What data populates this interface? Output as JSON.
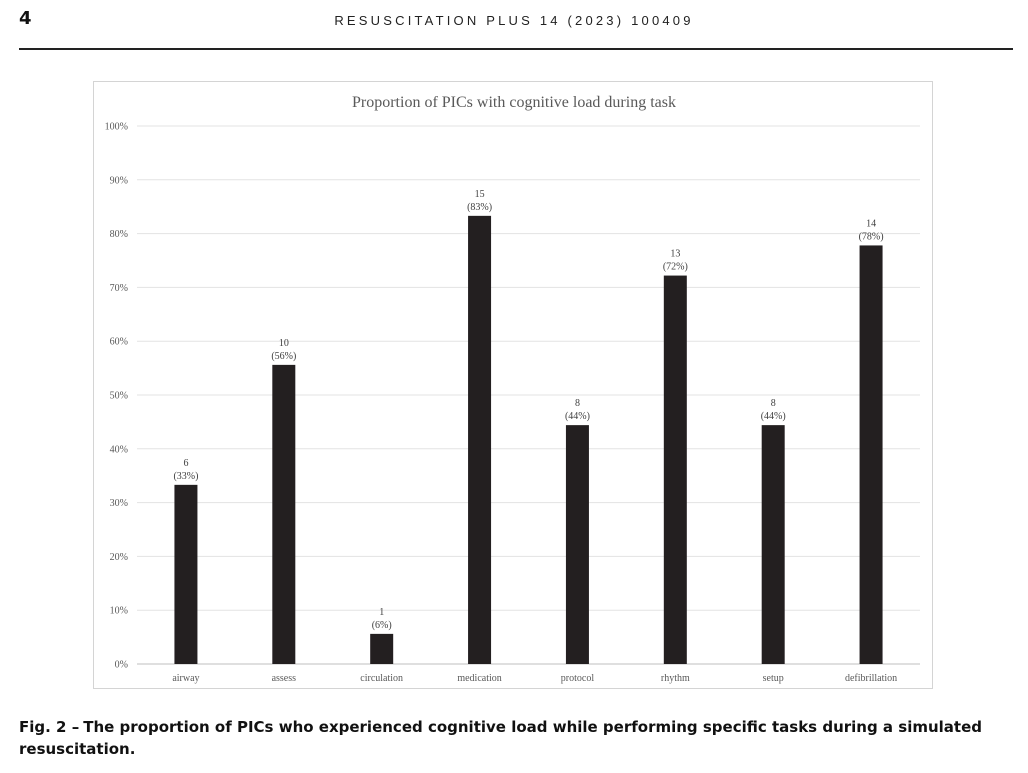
{
  "header": {
    "page_number": "4",
    "journal": "RESUSCITATION PLUS 14 (2023) 100409"
  },
  "caption": {
    "label": "Fig. 2 –",
    "text": "The proportion of PICs who experienced cognitive load while performing specific tasks during a simulated resuscitation."
  },
  "chart_data": {
    "type": "bar",
    "title": "Proportion of PICs with cognitive load during task",
    "xlabel": "",
    "ylabel": "",
    "categories": [
      "airway",
      "assess",
      "circulation",
      "medication",
      "protocol",
      "rhythm",
      "setup",
      "defibrillation"
    ],
    "values": [
      33.3,
      55.6,
      5.6,
      83.3,
      44.4,
      72.2,
      44.4,
      77.8
    ],
    "counts": [
      "6",
      "10",
      "1",
      "15",
      "8",
      "13",
      "8",
      "14"
    ],
    "percent_labels": [
      "(33%)",
      "(56%)",
      "(6%)",
      "(83%)",
      "(44%)",
      "(72%)",
      "(44%)",
      "(78%)"
    ],
    "yticks": [
      "0%",
      "10%",
      "20%",
      "30%",
      "40%",
      "50%",
      "60%",
      "70%",
      "80%",
      "90%",
      "100%"
    ],
    "ylim": [
      0,
      100
    ],
    "grid": true,
    "bar_color": "#231f20"
  }
}
